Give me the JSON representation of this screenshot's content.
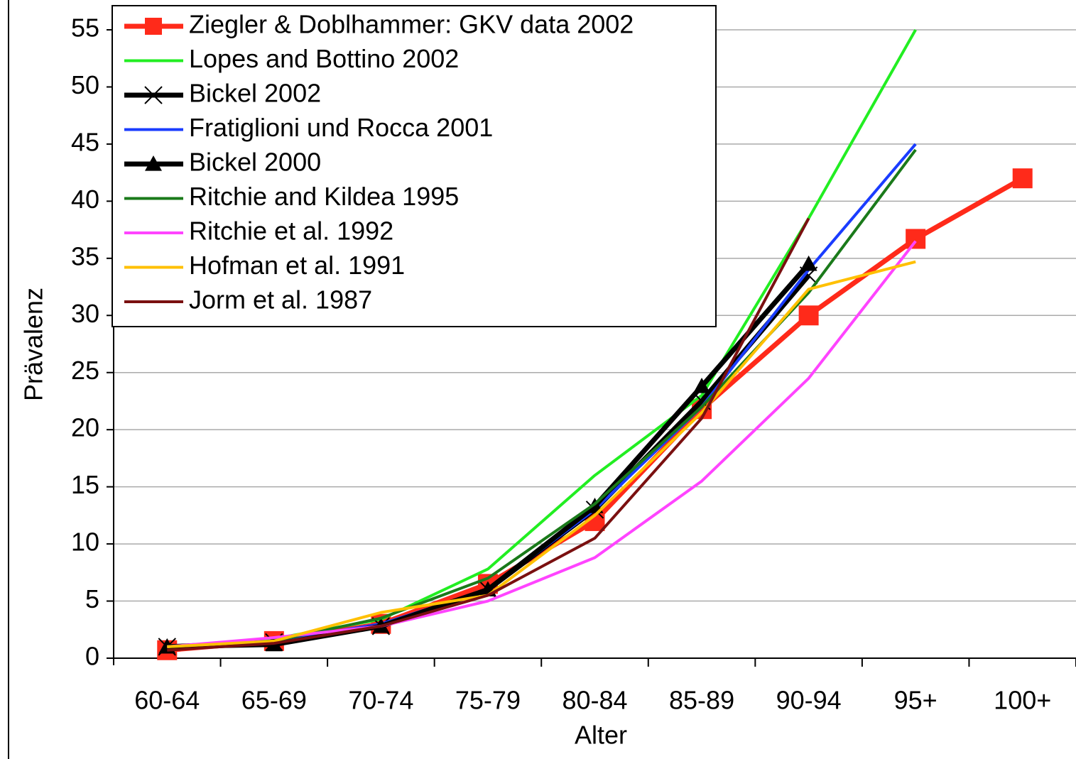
{
  "chart_data": {
    "type": "line",
    "y_label": "Prävalenz",
    "x_label": "Alter",
    "categories": [
      "60-64",
      "65-69",
      "70-74",
      "75-79",
      "80-84",
      "85-89",
      "90-94",
      "95+",
      "100+"
    ],
    "ylim": [
      0,
      55
    ],
    "yticks": [
      0,
      5,
      10,
      15,
      20,
      25,
      30,
      35,
      40,
      45,
      50,
      55
    ],
    "grid": true,
    "legend": "upper left",
    "series": [
      {
        "name": "Ziegler & Doblhammer: GKV data 2002",
        "color": "#ff2a1a",
        "marker": "square",
        "width": 7,
        "values": [
          0.7,
          1.5,
          3.0,
          6.5,
          12,
          21.8,
          30,
          36.7,
          42
        ]
      },
      {
        "name": "Lopes and Bottino 2002",
        "color": "#22ee22",
        "width": 4,
        "values": [
          1.0,
          1.7,
          3.4,
          7.8,
          16,
          23,
          38.5,
          55,
          null
        ]
      },
      {
        "name": "Bickel 2002",
        "color": "#000000",
        "marker": "x",
        "width": 7,
        "values": [
          1.0,
          1.4,
          2.8,
          6.0,
          13.0,
          22.5,
          33.5,
          null,
          null
        ]
      },
      {
        "name": "Fratiglioni und Rocca 2001",
        "color": "#1a3cff",
        "width": 4,
        "values": [
          1.0,
          1.5,
          3.0,
          6.0,
          13,
          22,
          34,
          45,
          null
        ]
      },
      {
        "name": "Bickel 2000",
        "color": "#000000",
        "marker": "triangle",
        "width": 7,
        "values": [
          1.0,
          1.2,
          2.8,
          6.0,
          13.3,
          23.8,
          34.5,
          null,
          null
        ]
      },
      {
        "name": "Ritchie and Kildea 1995",
        "color": "#1a7a1a",
        "width": 4,
        "values": [
          1.0,
          1.5,
          3.5,
          7.0,
          13.5,
          22,
          32,
          44.5,
          null
        ]
      },
      {
        "name": "Ritchie et al. 1992",
        "color": "#ff44ff",
        "width": 4,
        "values": [
          1.0,
          1.8,
          2.8,
          5.0,
          8.8,
          15.5,
          24.5,
          36.5,
          null
        ]
      },
      {
        "name": "Hofman et al. 1991",
        "color": "#ffc000",
        "width": 4,
        "values": [
          1.0,
          1.5,
          4.0,
          5.5,
          12.5,
          21.5,
          32.3,
          34.7,
          null
        ]
      },
      {
        "name": "Jorm et al. 1987",
        "color": "#7a1010",
        "width": 4,
        "values": [
          0.7,
          1.3,
          2.8,
          5.5,
          10.5,
          21,
          38.5,
          null,
          null
        ]
      }
    ]
  }
}
